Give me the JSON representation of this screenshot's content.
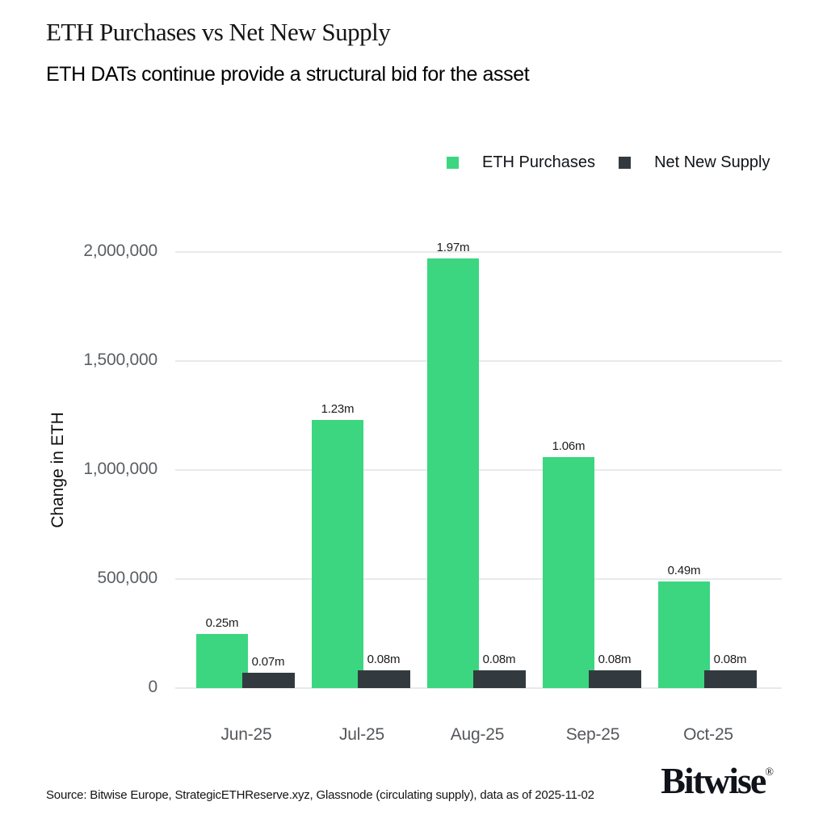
{
  "header": {
    "title": "ETH Purchases vs Net New Supply",
    "subtitle": "ETH DATs continue provide a structural bid for the asset"
  },
  "chart_data": {
    "type": "bar",
    "title": "ETH Purchases vs Net New Supply",
    "subtitle": "ETH DATs continue provide a structural bid for the asset",
    "categories": [
      "Jun-25",
      "Jul-25",
      "Aug-25",
      "Sep-25",
      "Oct-25"
    ],
    "series": [
      {
        "name": "ETH Purchases",
        "color": "#3cd680",
        "values": [
          250000,
          1230000,
          1970000,
          1060000,
          490000
        ],
        "labels": [
          "0.25m",
          "1.23m",
          "1.97m",
          "1.06m",
          "0.49m"
        ]
      },
      {
        "name": "Net New Supply",
        "color": "#333a3f",
        "values": [
          70000,
          80000,
          80000,
          80000,
          80000
        ],
        "labels": [
          "0.07m",
          "0.08m",
          "0.08m",
          "0.08m",
          "0.08m"
        ]
      }
    ],
    "xlabel": "",
    "ylabel": "Change in ETH",
    "ylim": [
      0,
      2000000
    ],
    "yticks": [
      {
        "value": 0,
        "label": "0"
      },
      {
        "value": 500000,
        "label": "500,000"
      },
      {
        "value": 1000000,
        "label": "1,000,000"
      },
      {
        "value": 1500000,
        "label": "1,500,000"
      },
      {
        "value": 2000000,
        "label": "2,000,000"
      }
    ],
    "grid": "horizontal",
    "legend_position": "top-right",
    "grid_color": "#e7eaec"
  },
  "footer": {
    "source": "Source: Bitwise Europe, StrategicETHReserve.xyz, Glassnode (circulating supply), data as of 2025-11-02",
    "logo_text": "Bitwise",
    "logo_mark": "®"
  }
}
